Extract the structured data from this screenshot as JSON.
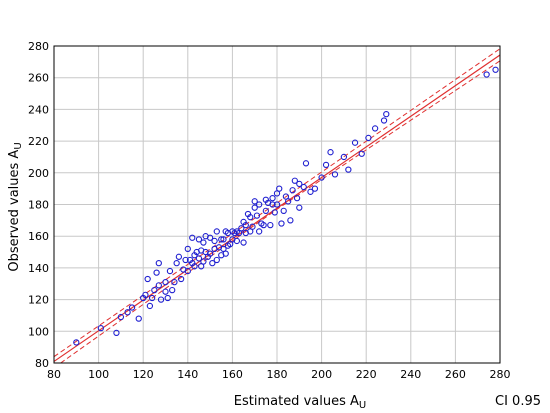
{
  "chart_data": {
    "type": "scatter",
    "xlabel": "Estimated values A",
    "xlabel_sub": "U",
    "ylabel": "Observed values A",
    "ylabel_sub": "U",
    "annotation": "CI 0.95",
    "xlim": [
      80,
      280
    ],
    "ylim": [
      80,
      280
    ],
    "xticks": [
      80,
      100,
      120,
      140,
      160,
      180,
      200,
      220,
      240,
      260,
      280
    ],
    "yticks": [
      80,
      100,
      120,
      140,
      160,
      180,
      200,
      220,
      240,
      260,
      280
    ],
    "grid": true,
    "colors": {
      "points": "#2020d0",
      "fit": "#e03030",
      "grid": "#c8c8c8"
    },
    "fit_line": {
      "x": [
        80,
        290
      ],
      "y": [
        81,
        284
      ]
    },
    "ci_lower": {
      "x": [
        80,
        180,
        290
      ],
      "y": [
        77,
        177,
        280
      ]
    },
    "ci_upper": {
      "x": [
        80,
        180,
        290
      ],
      "y": [
        84,
        181,
        288
      ]
    },
    "x": [
      90,
      101,
      108,
      110,
      113,
      115,
      118,
      120,
      121,
      122,
      123,
      124,
      125,
      126,
      127,
      127,
      128,
      130,
      130,
      131,
      132,
      133,
      134,
      135,
      136,
      137,
      138,
      139,
      140,
      140,
      141,
      142,
      142,
      143,
      143,
      144,
      145,
      145,
      146,
      146,
      147,
      147,
      148,
      148,
      149,
      150,
      150,
      151,
      152,
      152,
      153,
      153,
      154,
      155,
      155,
      156,
      156,
      157,
      157,
      158,
      158,
      159,
      160,
      160,
      161,
      162,
      162,
      163,
      164,
      165,
      165,
      166,
      166,
      167,
      168,
      168,
      169,
      170,
      170,
      171,
      172,
      172,
      173,
      174,
      175,
      175,
      176,
      177,
      178,
      178,
      179,
      180,
      180,
      181,
      182,
      183,
      184,
      185,
      186,
      187,
      188,
      189,
      190,
      190,
      192,
      193,
      195,
      197,
      200,
      202,
      204,
      206,
      210,
      212,
      215,
      218,
      221,
      224,
      228,
      229,
      274,
      278
    ],
    "y": [
      93,
      102,
      99,
      109,
      112,
      115,
      108,
      121,
      123,
      133,
      116,
      121,
      126,
      137,
      129,
      143,
      120,
      125,
      131,
      121,
      138,
      126,
      131,
      143,
      147,
      133,
      139,
      145,
      152,
      138,
      145,
      143,
      159,
      141,
      148,
      150,
      146,
      158,
      141,
      151,
      156,
      144,
      150,
      160,
      147,
      149,
      159,
      143,
      152,
      157,
      145,
      163,
      153,
      148,
      158,
      152,
      158,
      163,
      149,
      154,
      162,
      155,
      163,
      158,
      162,
      157,
      163,
      162,
      165,
      156,
      169,
      162,
      167,
      174,
      163,
      172,
      166,
      178,
      182,
      173,
      180,
      163,
      168,
      167,
      183,
      176,
      181,
      167,
      180,
      184,
      175,
      180,
      187,
      190,
      168,
      176,
      185,
      182,
      170,
      189,
      195,
      184,
      193,
      178,
      191,
      206,
      188,
      190,
      197,
      205,
      213,
      199,
      210,
      202,
      219,
      212,
      222,
      228,
      233,
      237,
      262,
      265
    ]
  }
}
